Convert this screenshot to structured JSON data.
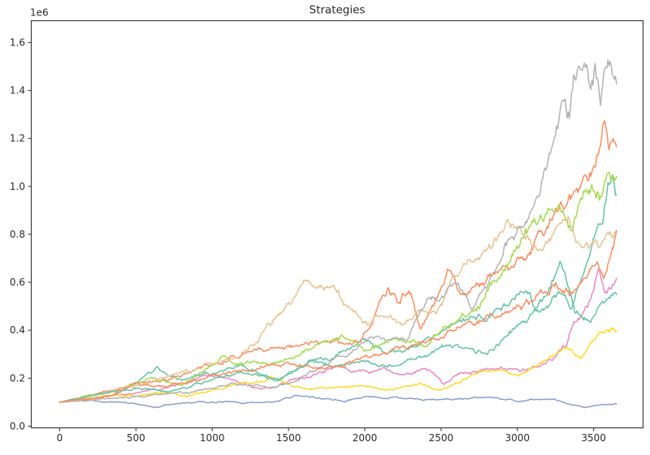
{
  "figure": {
    "background": "#ffffff",
    "spine_color": "#3c3c3c",
    "text_color": "#2b2b2b",
    "line_width": 1.5
  },
  "chart_data": {
    "type": "line",
    "title": "Strategies",
    "xlabel": "",
    "ylabel": "",
    "legend": null,
    "grid": false,
    "x_data_end": 3650,
    "value_scale": 1000000,
    "x_axis": {
      "ticks": [
        0,
        500,
        1000,
        1500,
        2000,
        2500,
        3000,
        3500
      ],
      "lim": [
        -186,
        3824
      ]
    },
    "y_axis": {
      "ticks": [
        0,
        0.2,
        0.4,
        0.6,
        0.8,
        1.0,
        1.2,
        1.4,
        1.6
      ],
      "tick_labels": [
        "0.0",
        "0.2",
        "0.4",
        "0.6",
        "0.8",
        "1.0",
        "1.2",
        "1.4",
        "1.6"
      ],
      "lim": [
        -0.007,
        1.691
      ],
      "offset_text": "1e6"
    },
    "series": [
      {
        "name": "series-1-teal",
        "color": "#66c2a5",
        "anchors": [
          [
            0,
            0.1
          ],
          [
            200,
            0.115
          ],
          [
            400,
            0.14
          ],
          [
            640,
            0.23
          ],
          [
            800,
            0.19
          ],
          [
            1000,
            0.22
          ],
          [
            1210,
            0.25
          ],
          [
            1440,
            0.19
          ],
          [
            1650,
            0.28
          ],
          [
            1800,
            0.3
          ],
          [
            1970,
            0.35
          ],
          [
            2150,
            0.3
          ],
          [
            2300,
            0.33
          ],
          [
            2500,
            0.38
          ],
          [
            2700,
            0.44
          ],
          [
            2900,
            0.5
          ],
          [
            3050,
            0.55
          ],
          [
            3150,
            0.47
          ],
          [
            3280,
            0.55
          ],
          [
            3360,
            0.5
          ],
          [
            3430,
            0.62
          ],
          [
            3500,
            0.78
          ],
          [
            3560,
            0.88
          ],
          [
            3620,
            1.03
          ],
          [
            3650,
            0.97
          ]
        ]
      },
      {
        "name": "series-2-orange",
        "color": "#fc8d62",
        "anchors": [
          [
            0,
            0.1
          ],
          [
            250,
            0.13
          ],
          [
            500,
            0.18
          ],
          [
            700,
            0.2
          ],
          [
            900,
            0.24
          ],
          [
            1100,
            0.28
          ],
          [
            1300,
            0.31
          ],
          [
            1500,
            0.34
          ],
          [
            1700,
            0.33
          ],
          [
            1850,
            0.36
          ],
          [
            1950,
            0.38
          ],
          [
            2050,
            0.47
          ],
          [
            2150,
            0.6
          ],
          [
            2230,
            0.52
          ],
          [
            2290,
            0.6
          ],
          [
            2365,
            0.41
          ],
          [
            2450,
            0.5
          ],
          [
            2540,
            0.65
          ],
          [
            2630,
            0.57
          ],
          [
            2800,
            0.62
          ],
          [
            2950,
            0.68
          ],
          [
            3100,
            0.75
          ],
          [
            3250,
            0.88
          ],
          [
            3330,
            0.92
          ],
          [
            3430,
            1.05
          ],
          [
            3510,
            1.1
          ],
          [
            3570,
            1.3
          ],
          [
            3600,
            1.17
          ],
          [
            3650,
            1.24
          ]
        ]
      },
      {
        "name": "series-3-blue",
        "color": "#8da0cb",
        "anchors": [
          [
            0,
            0.1
          ],
          [
            150,
            0.11
          ],
          [
            300,
            0.105
          ],
          [
            450,
            0.095
          ],
          [
            620,
            0.082
          ],
          [
            800,
            0.095
          ],
          [
            1000,
            0.1
          ],
          [
            1200,
            0.095
          ],
          [
            1400,
            0.105
          ],
          [
            1550,
            0.128
          ],
          [
            1700,
            0.12
          ],
          [
            1850,
            0.11
          ],
          [
            2000,
            0.12
          ],
          [
            2200,
            0.125
          ],
          [
            2400,
            0.108
          ],
          [
            2600,
            0.115
          ],
          [
            2750,
            0.122
          ],
          [
            2900,
            0.115
          ],
          [
            3000,
            0.105
          ],
          [
            3100,
            0.115
          ],
          [
            3234,
            0.118
          ],
          [
            3350,
            0.09
          ],
          [
            3447,
            0.078
          ],
          [
            3560,
            0.088
          ],
          [
            3650,
            0.091
          ]
        ]
      },
      {
        "name": "series-4-pink",
        "color": "#e78ac3",
        "anchors": [
          [
            0,
            0.1
          ],
          [
            300,
            0.12
          ],
          [
            600,
            0.15
          ],
          [
            820,
            0.18
          ],
          [
            950,
            0.21
          ],
          [
            1200,
            0.18
          ],
          [
            1342,
            0.16
          ],
          [
            1500,
            0.19
          ],
          [
            1650,
            0.21
          ],
          [
            1795,
            0.25
          ],
          [
            1950,
            0.23
          ],
          [
            2100,
            0.24
          ],
          [
            2250,
            0.22
          ],
          [
            2400,
            0.24
          ],
          [
            2490,
            0.196
          ],
          [
            2520,
            0.17
          ],
          [
            2600,
            0.213
          ],
          [
            2750,
            0.225
          ],
          [
            2900,
            0.23
          ],
          [
            3050,
            0.225
          ],
          [
            3150,
            0.24
          ],
          [
            3240,
            0.28
          ],
          [
            3320,
            0.33
          ],
          [
            3367,
            0.42
          ],
          [
            3430,
            0.46
          ],
          [
            3470,
            0.52
          ],
          [
            3530,
            0.66
          ],
          [
            3575,
            0.53
          ],
          [
            3610,
            0.56
          ],
          [
            3650,
            0.61
          ]
        ]
      },
      {
        "name": "series-5-lime",
        "color": "#a6d854",
        "anchors": [
          [
            0,
            0.1
          ],
          [
            300,
            0.14
          ],
          [
            600,
            0.19
          ],
          [
            800,
            0.17
          ],
          [
            1076,
            0.28
          ],
          [
            1300,
            0.26
          ],
          [
            1513,
            0.28
          ],
          [
            1700,
            0.33
          ],
          [
            1850,
            0.38
          ],
          [
            2000,
            0.3
          ],
          [
            2200,
            0.38
          ],
          [
            2400,
            0.35
          ],
          [
            2600,
            0.45
          ],
          [
            2750,
            0.52
          ],
          [
            2900,
            0.65
          ],
          [
            3050,
            0.78
          ],
          [
            3240,
            0.9
          ],
          [
            3350,
            0.85
          ],
          [
            3450,
            1.0
          ],
          [
            3550,
            0.95
          ],
          [
            3650,
            1.05
          ]
        ]
      },
      {
        "name": "series-6-yellow",
        "color": "#ffd92f",
        "anchors": [
          [
            0,
            0.1
          ],
          [
            300,
            0.12
          ],
          [
            600,
            0.14
          ],
          [
            836,
            0.13
          ],
          [
            1000,
            0.16
          ],
          [
            1193,
            0.18
          ],
          [
            1385,
            0.2
          ],
          [
            1620,
            0.152
          ],
          [
            1800,
            0.16
          ],
          [
            2000,
            0.17
          ],
          [
            2170,
            0.16
          ],
          [
            2330,
            0.18
          ],
          [
            2490,
            0.152
          ],
          [
            2600,
            0.19
          ],
          [
            2717,
            0.23
          ],
          [
            2754,
            0.247
          ],
          [
            2850,
            0.235
          ],
          [
            3005,
            0.22
          ],
          [
            3100,
            0.25
          ],
          [
            3197,
            0.287
          ],
          [
            3303,
            0.32
          ],
          [
            3340,
            0.315
          ],
          [
            3420,
            0.264
          ],
          [
            3527,
            0.38
          ],
          [
            3623,
            0.41
          ],
          [
            3650,
            0.4
          ]
        ]
      },
      {
        "name": "series-7-tan",
        "color": "#e5c494",
        "anchors": [
          [
            0,
            0.1
          ],
          [
            250,
            0.14
          ],
          [
            500,
            0.17
          ],
          [
            700,
            0.21
          ],
          [
            927,
            0.26
          ],
          [
            1167,
            0.3
          ],
          [
            1300,
            0.36
          ],
          [
            1422,
            0.46
          ],
          [
            1550,
            0.53
          ],
          [
            1630,
            0.59
          ],
          [
            1700,
            0.57
          ],
          [
            1800,
            0.54
          ],
          [
            1900,
            0.47
          ],
          [
            1992,
            0.42
          ],
          [
            2100,
            0.45
          ],
          [
            2250,
            0.42
          ],
          [
            2365,
            0.5
          ],
          [
            2470,
            0.47
          ],
          [
            2550,
            0.58
          ],
          [
            2650,
            0.67
          ],
          [
            2750,
            0.72
          ],
          [
            2860,
            0.8
          ],
          [
            2941,
            0.86
          ],
          [
            3050,
            0.8
          ],
          [
            3150,
            0.73
          ],
          [
            3250,
            0.8
          ],
          [
            3350,
            0.83
          ],
          [
            3450,
            0.79
          ],
          [
            3550,
            0.78
          ],
          [
            3650,
            0.84
          ]
        ]
      },
      {
        "name": "series-8-gray",
        "color": "#b3b3b3",
        "anchors": [
          [
            0,
            0.1
          ],
          [
            300,
            0.11
          ],
          [
            600,
            0.13
          ],
          [
            943,
            0.146
          ],
          [
            1210,
            0.17
          ],
          [
            1400,
            0.16
          ],
          [
            1566,
            0.2
          ],
          [
            1700,
            0.24
          ],
          [
            1850,
            0.3
          ],
          [
            1955,
            0.33
          ],
          [
            2100,
            0.37
          ],
          [
            2285,
            0.38
          ],
          [
            2418,
            0.52
          ],
          [
            2610,
            0.57
          ],
          [
            2701,
            0.51
          ],
          [
            2861,
            0.66
          ],
          [
            3021,
            0.83
          ],
          [
            3143,
            0.98
          ],
          [
            3220,
            1.15
          ],
          [
            3300,
            1.43
          ],
          [
            3340,
            1.35
          ],
          [
            3400,
            1.55
          ],
          [
            3450,
            1.62
          ],
          [
            3480,
            1.5
          ],
          [
            3510,
            1.58
          ],
          [
            3545,
            1.39
          ],
          [
            3590,
            1.5
          ],
          [
            3620,
            1.55
          ],
          [
            3650,
            1.5
          ]
        ]
      },
      {
        "name": "series-9-teal",
        "color": "#66c2a5",
        "anchors": [
          [
            0,
            0.1
          ],
          [
            250,
            0.13
          ],
          [
            500,
            0.16
          ],
          [
            700,
            0.14
          ],
          [
            900,
            0.17
          ],
          [
            1100,
            0.2
          ],
          [
            1210,
            0.22
          ],
          [
            1438,
            0.19
          ],
          [
            1646,
            0.275
          ],
          [
            1800,
            0.25
          ],
          [
            2000,
            0.27
          ],
          [
            2200,
            0.25
          ],
          [
            2400,
            0.3
          ],
          [
            2520,
            0.34
          ],
          [
            2600,
            0.33
          ],
          [
            2800,
            0.3
          ],
          [
            2950,
            0.38
          ],
          [
            3100,
            0.45
          ],
          [
            3200,
            0.52
          ],
          [
            3280,
            0.69
          ],
          [
            3380,
            0.47
          ],
          [
            3480,
            0.44
          ],
          [
            3560,
            0.52
          ],
          [
            3650,
            0.55
          ]
        ]
      },
      {
        "name": "series-10-orange",
        "color": "#fc8d62",
        "anchors": [
          [
            0,
            0.1
          ],
          [
            300,
            0.13
          ],
          [
            506,
            0.186
          ],
          [
            700,
            0.16
          ],
          [
            900,
            0.19
          ],
          [
            1100,
            0.22
          ],
          [
            1300,
            0.24
          ],
          [
            1500,
            0.26
          ],
          [
            1742,
            0.23
          ],
          [
            1900,
            0.27
          ],
          [
            2100,
            0.3
          ],
          [
            2300,
            0.33
          ],
          [
            2500,
            0.37
          ],
          [
            2700,
            0.42
          ],
          [
            2900,
            0.47
          ],
          [
            3100,
            0.52
          ],
          [
            3250,
            0.62
          ],
          [
            3350,
            0.55
          ],
          [
            3450,
            0.6
          ],
          [
            3520,
            0.68
          ],
          [
            3570,
            0.62
          ],
          [
            3650,
            0.78
          ]
        ]
      }
    ]
  }
}
